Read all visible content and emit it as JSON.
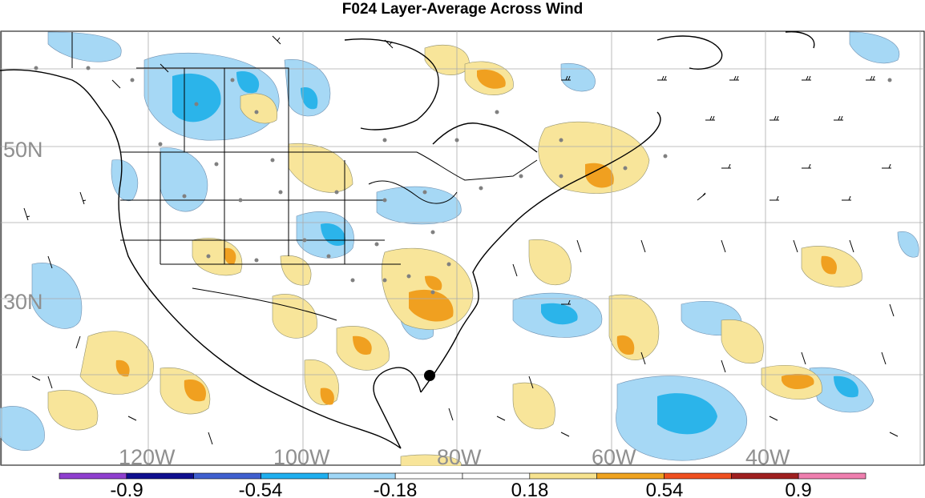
{
  "title": "F024 Layer-Average Across Wind",
  "lat_labels": [
    "50N",
    "30N"
  ],
  "lon_labels": [
    "120W",
    "100W",
    "80W",
    "60W",
    "40W"
  ],
  "colorbar": {
    "colors": [
      "#8f3fcf",
      "#0f0f8f",
      "#3f5fcf",
      "#1fafef",
      "#9fd7f7",
      "#ffffff",
      "#ffffff",
      "#f7e38f",
      "#efa31f",
      "#ef4f1f",
      "#9f1f1f",
      "#ef7faf"
    ],
    "tick_labels": [
      "-0.9",
      "-0.54",
      "-0.18",
      "0.18",
      "0.54",
      "0.9"
    ]
  },
  "legend_colors": {
    "light_blue": "#a6d8f5",
    "mid_blue": "#2bb4ea",
    "light_yellow": "#f8e59a",
    "orange": "#f0a020"
  }
}
